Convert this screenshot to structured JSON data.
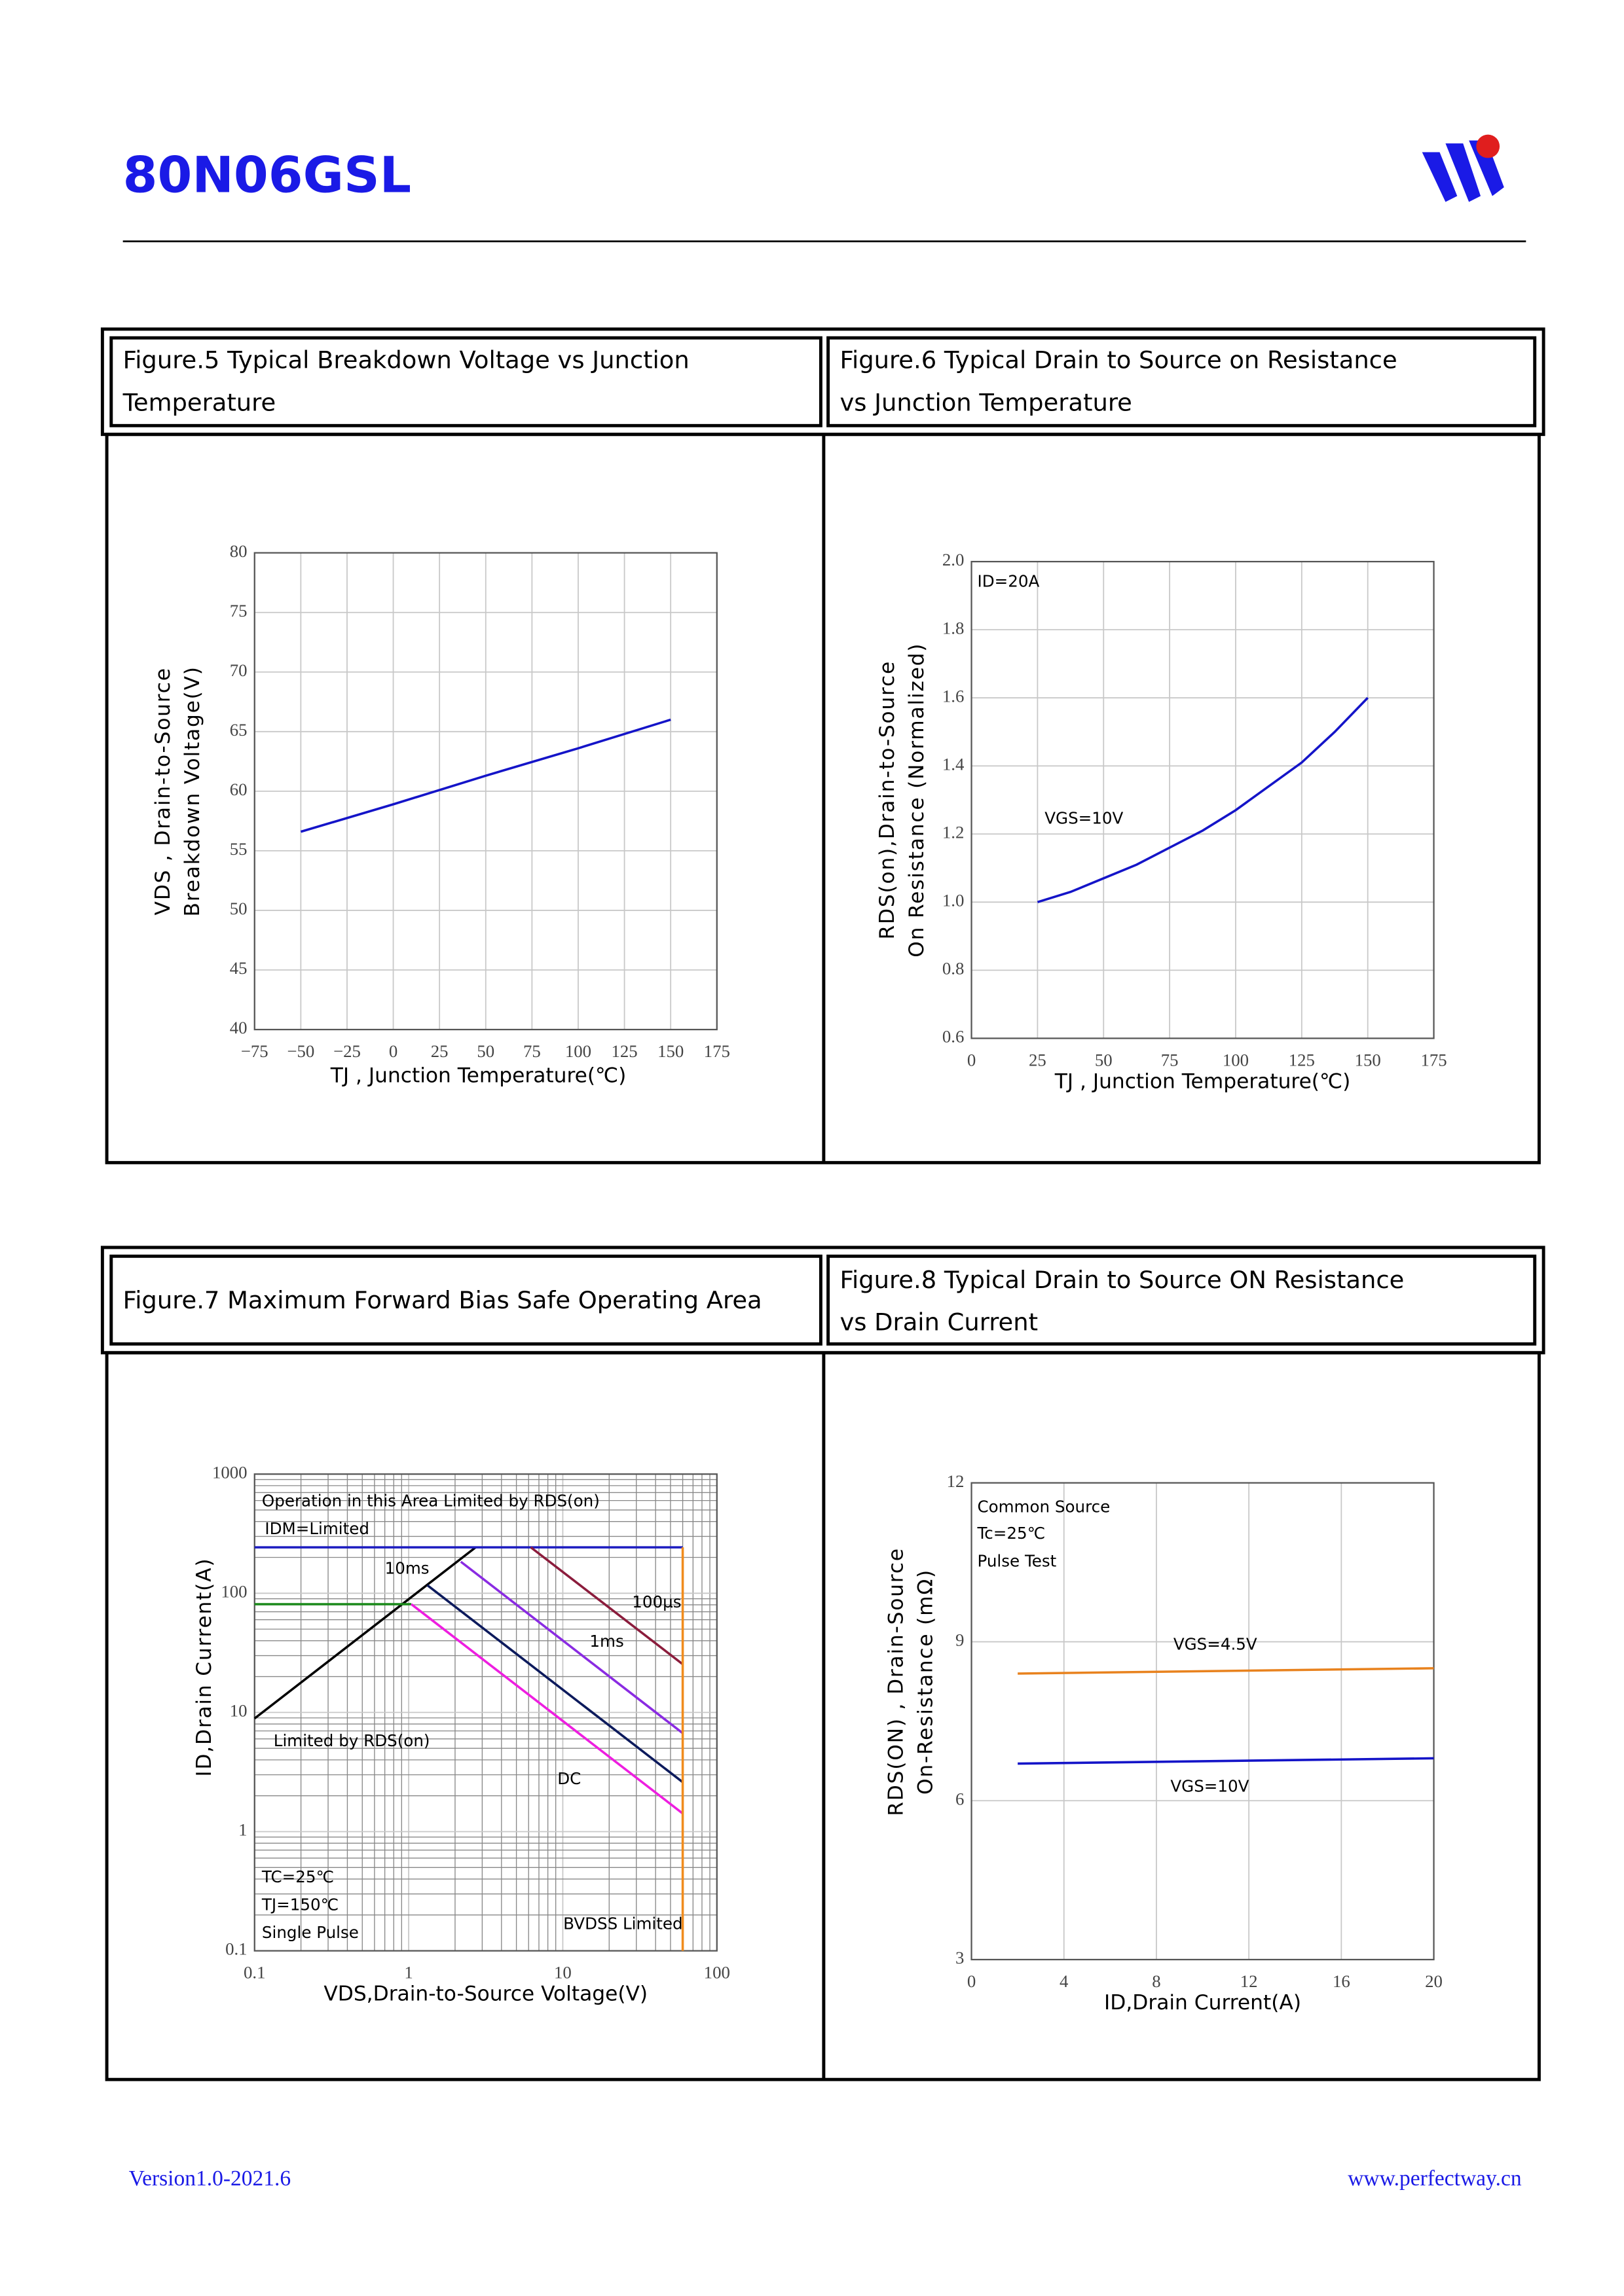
{
  "header": {
    "title": "80N06GSL"
  },
  "chart_data": [
    {
      "type": "line",
      "title": [
        "Figure.5 Typical Breakdown Voltage vs Junction",
        "Temperature"
      ],
      "x_label": "TJ , Junction Temperature(℃)",
      "y_label": [
        "VDS , Drain-to-Source",
        "Breakdown Voltage(V)"
      ],
      "xlim": [
        -75,
        175
      ],
      "xticks": [
        {
          "value": -75,
          "label": "−75"
        },
        {
          "value": -50,
          "label": "−50"
        },
        {
          "value": -25,
          "label": "−25"
        },
        0,
        25,
        50,
        75,
        100,
        125,
        150,
        175
      ],
      "ylim": [
        40,
        80
      ],
      "yticks": [
        40,
        45,
        50,
        55,
        60,
        65,
        70,
        75,
        80
      ],
      "grid": true,
      "x": [
        -50,
        0,
        50,
        100,
        150
      ],
      "series": [
        {
          "color": "#1414c8",
          "values": [
            56.6,
            58.9,
            61.3,
            63.6,
            66.0
          ]
        }
      ]
    },
    {
      "type": "line",
      "title": [
        "Figure.6 Typical Drain to Source on Resistance",
        "vs Junction Temperature"
      ],
      "x_label": "TJ , Junction Temperature(℃)",
      "y_label": [
        "RDS(on),Drain-to-Source",
        "On Resistance (Normalized)"
      ],
      "xlim": [
        0,
        175
      ],
      "xticks": [
        0,
        25,
        50,
        75,
        100,
        125,
        150,
        175
      ],
      "ylim": [
        0.6,
        2.0
      ],
      "yticks": [
        0.6,
        0.8,
        {
          "value": 1,
          "label": "1.0"
        },
        1.2,
        1.4,
        1.6,
        1.8,
        {
          "value": 2,
          "label": "2.0"
        }
      ],
      "grid": true,
      "annotations": [
        "ID=20A",
        "VGS=10V"
      ],
      "x": [
        25,
        37.5,
        50,
        62.5,
        75,
        87.5,
        100,
        112.5,
        125,
        137.5,
        150
      ],
      "series": [
        {
          "color": "#1414c8",
          "values": [
            1.0,
            1.03,
            1.07,
            1.11,
            1.16,
            1.21,
            1.27,
            1.34,
            1.41,
            1.5,
            1.6
          ]
        }
      ]
    },
    {
      "type": "line",
      "title": [
        "Figure.7 Maximum Forward Bias Safe Operating Area"
      ],
      "x_label": "VDS,Drain-to-Source Voltage(V)",
      "y_label": [
        "ID,Drain Current(A)"
      ],
      "xscale": "log",
      "yscale": "log",
      "xlim": [
        0.1,
        100
      ],
      "xticks": [
        0.1,
        1,
        10,
        100
      ],
      "ylim": [
        0.1,
        1000
      ],
      "yticks": [
        0.1,
        1,
        10,
        100,
        1000
      ],
      "grid": true,
      "annotations": [
        "Operation in this Area Limited by RDS(on)",
        "IDM=Limited",
        "10ms",
        "100µs",
        "1ms",
        "Limited by RDS(on)",
        "DC",
        "TC=25℃",
        "TJ=150℃",
        "Single Pulse",
        "BVDSS Limited"
      ],
      "series": [
        {
          "color": "#000000",
          "x": [
            0.1,
            2.72
          ],
          "values": [
            8.9,
            243
          ]
        },
        {
          "color": "#1c1cc0",
          "x": [
            0.1,
            60
          ],
          "values": [
            243,
            243
          ]
        },
        {
          "color": "#1a8a1a",
          "x": [
            0.1,
            1.04
          ],
          "values": [
            81,
            81
          ]
        },
        {
          "color": "#8b1c3c",
          "x": [
            6.2,
            60
          ],
          "values": [
            243,
            25.4
          ]
        },
        {
          "color": "#8a2be2",
          "x": [
            2.18,
            60
          ],
          "values": [
            184,
            6.7
          ]
        },
        {
          "color": "#0c1a5c",
          "x": [
            1.32,
            60
          ],
          "values": [
            117,
            2.6
          ]
        },
        {
          "color": "#ee1ee0",
          "x": [
            1.04,
            60
          ],
          "values": [
            81,
            1.42
          ]
        },
        {
          "color": "#f08c1e",
          "x": [
            60,
            60
          ],
          "values": [
            0.1,
            243
          ]
        }
      ]
    },
    {
      "type": "line",
      "title": [
        "Figure.8 Typical Drain to Source ON Resistance",
        "vs Drain Current"
      ],
      "x_label": "ID,Drain Current(A)",
      "y_label": [
        "RDS(ON) , Drain-Source",
        "On-Resistance (mΩ)"
      ],
      "xlim": [
        0,
        20
      ],
      "xticks": [
        0,
        4,
        8,
        12,
        16,
        20
      ],
      "ylim": [
        3,
        12
      ],
      "yticks": [
        3,
        6,
        9,
        12
      ],
      "grid": true,
      "annotations": [
        "Common Source",
        "Tc=25℃",
        "Pulse Test",
        "VGS=4.5V",
        "VGS=10V"
      ],
      "x": [
        2,
        20
      ],
      "series": [
        {
          "color": "#e8821e",
          "values": [
            8.4,
            8.5
          ]
        },
        {
          "color": "#1414c8",
          "values": [
            6.7,
            6.8
          ]
        }
      ]
    }
  ],
  "footer": {
    "version": "Version1.0-2021.6",
    "website": "www.perfectway.cn"
  }
}
